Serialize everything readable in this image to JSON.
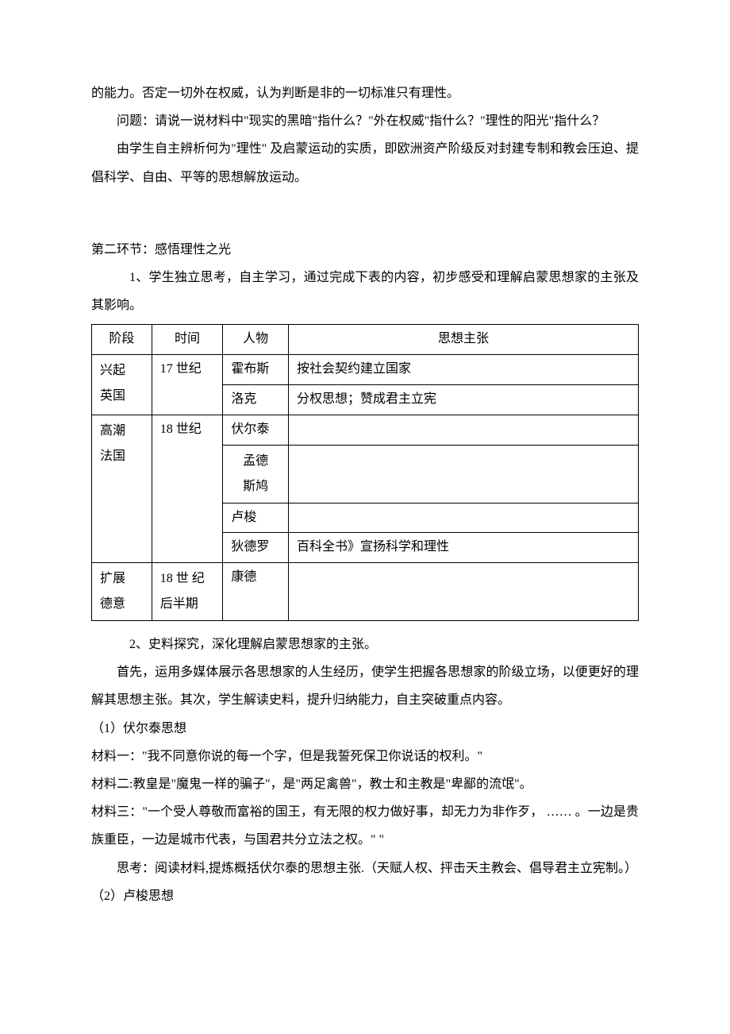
{
  "intro": {
    "p1": "的能力。否定一切外在权威，认为判断是非的一切标准只有理性。",
    "p2": "问题：请说一说材料中\"现实的黑暗\"指什么？\"外在权威\"指什么？\"理性的阳光\"指什么？",
    "p3": "由学生自主辨析何为\"理性\"  及启蒙运动的实质，即欧洲资产阶级反对封建专制和教会压迫、提倡科学、自由、平等的思想解放运动。"
  },
  "section2": {
    "title": "第二环节：感悟理性之光",
    "item1": "1、学生独立思考，自主学习，通过完成下表的内容，初步感受和理解启蒙思想家的主张及其影响。"
  },
  "table": {
    "headers": {
      "stage": "阶段",
      "time": "时间",
      "person": "人物",
      "idea": "思想主张"
    },
    "rows": {
      "r1": {
        "stage_l1": "兴起",
        "stage_l2": "英国",
        "time": "17 世纪",
        "person": "霍布斯",
        "idea": "按社会契约建立国家"
      },
      "r2": {
        "person": "洛克",
        "idea": "分权思想；赞成君主立宪"
      },
      "r3": {
        "stage_l1": "高潮",
        "stage_l2": "法国",
        "time": "18 世纪",
        "person": "伏尔泰",
        "idea": ""
      },
      "r4": {
        "person_l1": "孟德",
        "person_l2": "斯鸠",
        "idea": ""
      },
      "r5": {
        "person": "卢梭",
        "idea": ""
      },
      "r6": {
        "person": "狄德罗",
        "idea": "百科全书》宣扬科学和理性"
      },
      "r7": {
        "stage_l1": "扩展",
        "stage_l2": "德意",
        "time_l1": "18 世 纪",
        "time_l2": "后半期",
        "person": "康德",
        "idea": ""
      }
    }
  },
  "after_table": {
    "item2": "2、史料探究，深化理解启蒙思想家的主张。",
    "p1": "首先，运用多媒体展示各思想家的人生经历，使学生把握各思想家的阶级立场，以便更好的理解其思想主张。其次，学生解读史料，提升归纳能力，自主突破重点内容。",
    "sub1": "（1）伏尔泰思想",
    "m1": " 材料一：\"我不同意你说的每一个字，但是我誓死保卫你说话的权利。\"",
    "m2": "材料二:教皇是\"魔鬼一样的骗子\"，是\"两足禽兽\"，教士和主教是\"卑鄙的流氓\"。",
    "m3": "材料三：\"一个受人尊敬而富裕的国王，有无限的权力做好事，却无力为非作歹， …… 。一边是贵族重臣，一边是城市代表，与国君共分立法之权。\"  \"",
    "think": "思考：阅读材料,提炼概括伏尔泰的思想主张.（天赋人权、抨击天主教会、倡导君主立宪制。）",
    "sub2": "（2）卢梭思想"
  }
}
